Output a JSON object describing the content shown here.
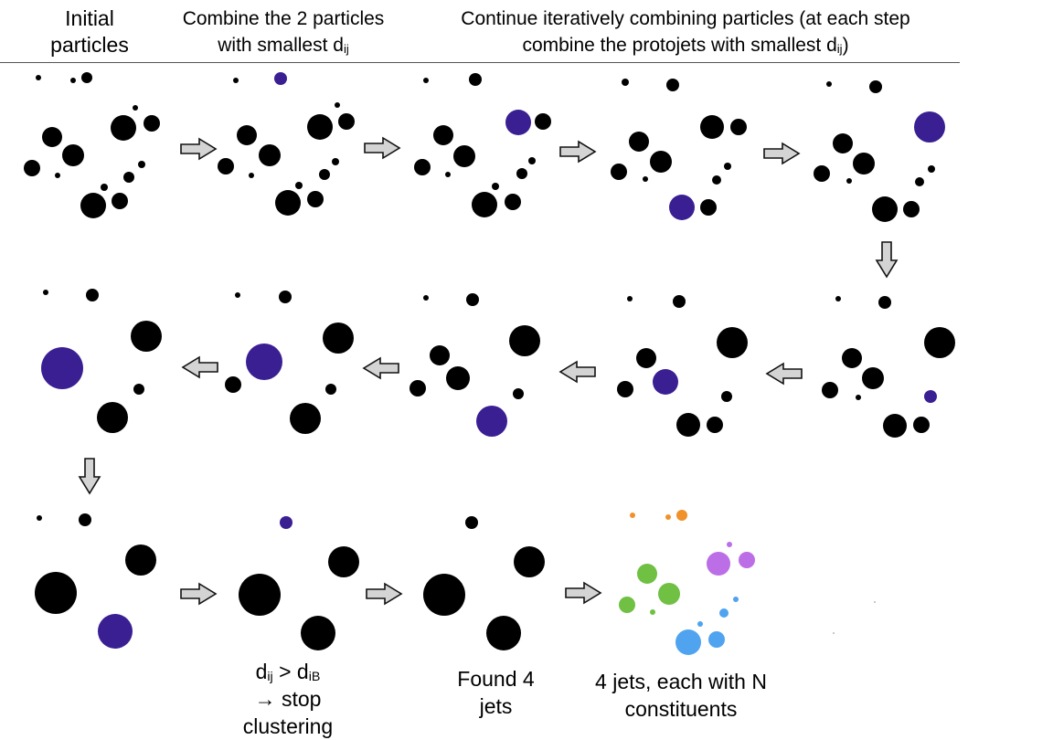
{
  "header": {
    "col1_line1": "Initial",
    "col1_line2": "particles",
    "col2_line1": "Combine the 2 particles",
    "col2_line2_pre": "with smallest d",
    "col2_line2_sub": "ij",
    "col3_line1": "Continue iteratively combining particles (at each step",
    "col3_line2_pre": "combine the protojets with smallest d",
    "col3_line2_sub": "ij",
    "col3_line2_post": ")"
  },
  "captions": {
    "stop_d1": "d",
    "stop_d1_sub": "ij",
    "stop_gt": " > d",
    "stop_d2_sub": "iB",
    "stop_line2": "→ stop",
    "stop_line3": "clustering",
    "found_line1": "Found 4",
    "found_line2": "jets",
    "jets_line1": "4 jets, each with N",
    "jets_line2": "constituents"
  },
  "colors": {
    "particle": "#000000",
    "merged": "#3a1f93",
    "arrow_fill": "#d4d4d4",
    "arrow_stroke": "#111111",
    "jet_orange": "#f0912a",
    "jet_purple": "#bb6ee6",
    "jet_green": "#6fc043",
    "jet_blue": "#4fa3ef"
  }
}
